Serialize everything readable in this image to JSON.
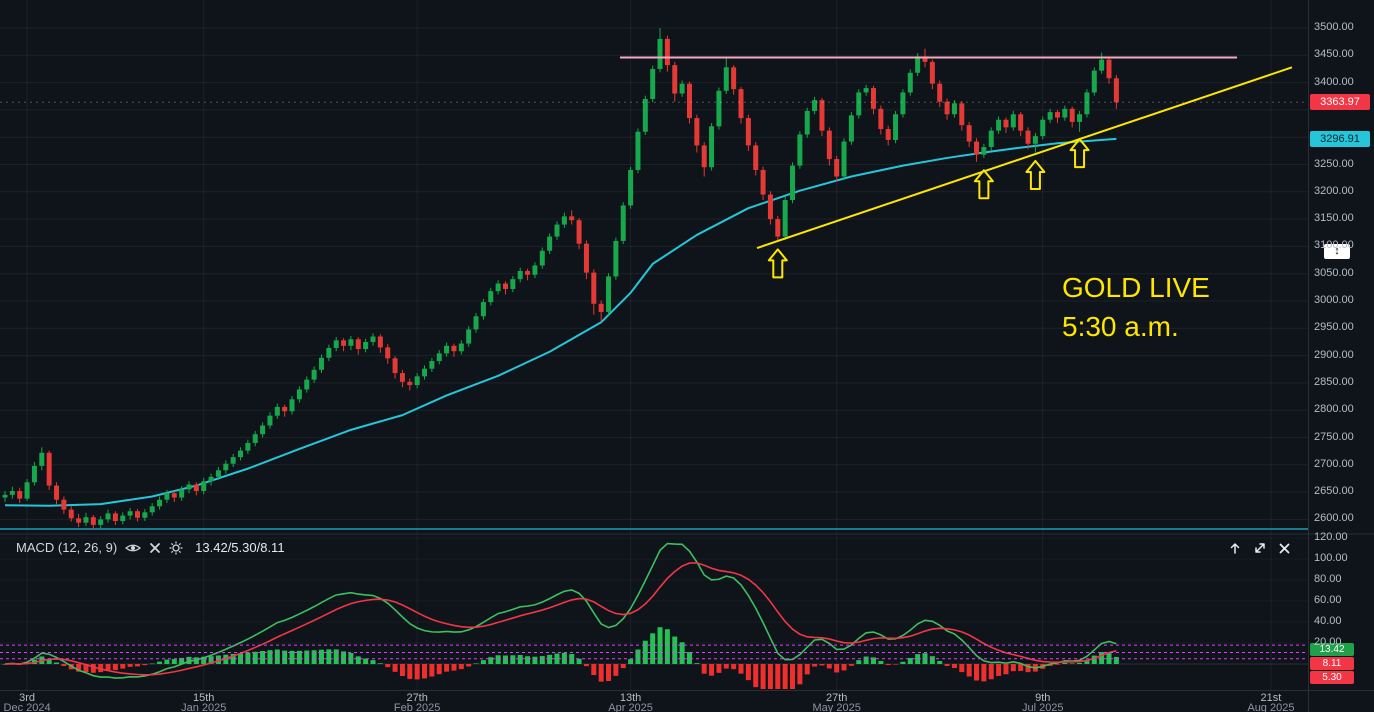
{
  "colors": {
    "bg": "#0e1419",
    "grid": "rgba(255,255,255,0.06)",
    "axis_text": "#b6bcc8",
    "separator": "#2a2e39",
    "up": "#17a74c",
    "down": "#e53935",
    "ma_line": "#26c6da",
    "trendline": "#ffe600",
    "resistance": "#f7a8c4",
    "macd_line": "#3dbf5f",
    "signal_line": "#f23645",
    "hist_up": "#21c454",
    "hist_down": "#ef2e2e",
    "levels_magenta": "#e040fb",
    "teal_hline": "#1b9db8",
    "last_badge_bg": "#f23645",
    "ma_badge_bg": "#26c6da",
    "annotation_yellow": "#ffe600"
  },
  "annotation": {
    "line1": "GOLD LIVE",
    "line2": "5:30 a.m."
  },
  "price_scale": {
    "last": "3363.97",
    "ma_value": "3296.91",
    "marker_glyph": "↕"
  },
  "macd_panel": {
    "title": "MACD (12, 26, 9)",
    "values": "13.42/5.30/8.11",
    "badge_macd": "13.42",
    "badge_signal": "8.11",
    "badge_hist": "5.30"
  },
  "chart_data": {
    "type": "candlestick",
    "title": "GOLD LIVE",
    "y_axis": {
      "min": 2600,
      "max": 3500,
      "step": 50
    },
    "macd_axis": {
      "ticks": [
        20,
        40,
        60,
        80,
        100,
        120
      ]
    },
    "x_ticks": [
      {
        "i": 3,
        "day": "3rd",
        "month": "Dec 2024"
      },
      {
        "i": 27,
        "day": "15th",
        "month": "Jan 2025"
      },
      {
        "i": 56,
        "day": "27th",
        "month": "Feb 2025"
      },
      {
        "i": 85,
        "day": "13th",
        "month": "Apr 2025"
      },
      {
        "i": 113,
        "day": "27th",
        "month": "May 2025"
      },
      {
        "i": 141,
        "day": "9th",
        "month": "Jul 2025"
      },
      {
        "i": 172,
        "day": "21st",
        "month": "Aug 2025"
      }
    ],
    "ohlc": [
      [
        2640,
        2652,
        2632,
        2645
      ],
      [
        2645,
        2660,
        2638,
        2652
      ],
      [
        2652,
        2658,
        2630,
        2638
      ],
      [
        2638,
        2674,
        2634,
        2668
      ],
      [
        2668,
        2705,
        2662,
        2698
      ],
      [
        2698,
        2732,
        2690,
        2722
      ],
      [
        2722,
        2726,
        2654,
        2662
      ],
      [
        2662,
        2668,
        2628,
        2636
      ],
      [
        2636,
        2642,
        2610,
        2618
      ],
      [
        2618,
        2624,
        2596,
        2602
      ],
      [
        2602,
        2610,
        2586,
        2594
      ],
      [
        2594,
        2612,
        2588,
        2604
      ],
      [
        2604,
        2608,
        2582,
        2590
      ],
      [
        2590,
        2606,
        2584,
        2600
      ],
      [
        2600,
        2618,
        2594,
        2611
      ],
      [
        2611,
        2615,
        2590,
        2597
      ],
      [
        2597,
        2613,
        2591,
        2607
      ],
      [
        2607,
        2621,
        2600,
        2615
      ],
      [
        2615,
        2619,
        2596,
        2603
      ],
      [
        2603,
        2619,
        2597,
        2613
      ],
      [
        2613,
        2630,
        2607,
        2624
      ],
      [
        2624,
        2642,
        2618,
        2636
      ],
      [
        2636,
        2654,
        2630,
        2648
      ],
      [
        2648,
        2652,
        2632,
        2640
      ],
      [
        2640,
        2661,
        2634,
        2655
      ],
      [
        2655,
        2670,
        2648,
        2664
      ],
      [
        2664,
        2668,
        2644,
        2652
      ],
      [
        2652,
        2676,
        2646,
        2670
      ],
      [
        2670,
        2684,
        2662,
        2678
      ],
      [
        2678,
        2696,
        2672,
        2690
      ],
      [
        2690,
        2708,
        2684,
        2702
      ],
      [
        2702,
        2720,
        2696,
        2714
      ],
      [
        2714,
        2732,
        2708,
        2726
      ],
      [
        2726,
        2746,
        2720,
        2740
      ],
      [
        2740,
        2762,
        2734,
        2756
      ],
      [
        2756,
        2778,
        2750,
        2772
      ],
      [
        2772,
        2796,
        2766,
        2790
      ],
      [
        2790,
        2812,
        2784,
        2806
      ],
      [
        2806,
        2810,
        2788,
        2798
      ],
      [
        2798,
        2826,
        2792,
        2820
      ],
      [
        2820,
        2844,
        2814,
        2838
      ],
      [
        2838,
        2862,
        2832,
        2856
      ],
      [
        2856,
        2880,
        2850,
        2874
      ],
      [
        2874,
        2902,
        2868,
        2896
      ],
      [
        2896,
        2920,
        2890,
        2914
      ],
      [
        2914,
        2934,
        2908,
        2928
      ],
      [
        2928,
        2932,
        2908,
        2918
      ],
      [
        2918,
        2936,
        2910,
        2930
      ],
      [
        2930,
        2934,
        2902,
        2912
      ],
      [
        2912,
        2931,
        2906,
        2925
      ],
      [
        2925,
        2941,
        2918,
        2935
      ],
      [
        2935,
        2939,
        2905,
        2915
      ],
      [
        2915,
        2921,
        2885,
        2895
      ],
      [
        2895,
        2899,
        2858,
        2868
      ],
      [
        2868,
        2874,
        2842,
        2852
      ],
      [
        2852,
        2858,
        2836,
        2846
      ],
      [
        2846,
        2868,
        2840,
        2862
      ],
      [
        2862,
        2882,
        2856,
        2876
      ],
      [
        2876,
        2896,
        2870,
        2890
      ],
      [
        2890,
        2910,
        2884,
        2904
      ],
      [
        2904,
        2924,
        2898,
        2918
      ],
      [
        2918,
        2922,
        2898,
        2908
      ],
      [
        2908,
        2928,
        2902,
        2922
      ],
      [
        2922,
        2954,
        2916,
        2948
      ],
      [
        2948,
        2978,
        2942,
        2972
      ],
      [
        2972,
        3004,
        2966,
        2998
      ],
      [
        2998,
        3024,
        2992,
        3018
      ],
      [
        3018,
        3038,
        3012,
        3032
      ],
      [
        3032,
        3036,
        3012,
        3022
      ],
      [
        3022,
        3046,
        3016,
        3040
      ],
      [
        3040,
        3061,
        3034,
        3055
      ],
      [
        3055,
        3059,
        3038,
        3048
      ],
      [
        3048,
        3071,
        3042,
        3065
      ],
      [
        3065,
        3098,
        3059,
        3092
      ],
      [
        3092,
        3124,
        3086,
        3118
      ],
      [
        3118,
        3146,
        3112,
        3140
      ],
      [
        3140,
        3162,
        3134,
        3155
      ],
      [
        3155,
        3166,
        3140,
        3148
      ],
      [
        3148,
        3152,
        3095,
        3105
      ],
      [
        3105,
        3111,
        3040,
        3052
      ],
      [
        3052,
        3058,
        2975,
        2995
      ],
      [
        2995,
        3001,
        2962,
        2980
      ],
      [
        2980,
        3051,
        2974,
        3045
      ],
      [
        3045,
        3116,
        3039,
        3110
      ],
      [
        3110,
        3181,
        3104,
        3175
      ],
      [
        3175,
        3246,
        3169,
        3240
      ],
      [
        3240,
        3316,
        3234,
        3310
      ],
      [
        3310,
        3376,
        3304,
        3370
      ],
      [
        3370,
        3431,
        3364,
        3425
      ],
      [
        3425,
        3500,
        3419,
        3480
      ],
      [
        3480,
        3486,
        3420,
        3432
      ],
      [
        3432,
        3438,
        3365,
        3380
      ],
      [
        3380,
        3404,
        3374,
        3398
      ],
      [
        3398,
        3402,
        3325,
        3335
      ],
      [
        3335,
        3341,
        3272,
        3285
      ],
      [
        3285,
        3291,
        3228,
        3245
      ],
      [
        3245,
        3326,
        3239,
        3320
      ],
      [
        3320,
        3391,
        3314,
        3385
      ],
      [
        3385,
        3445,
        3379,
        3428
      ],
      [
        3428,
        3432,
        3378,
        3388
      ],
      [
        3388,
        3392,
        3325,
        3335
      ],
      [
        3335,
        3341,
        3275,
        3285
      ],
      [
        3285,
        3291,
        3230,
        3240
      ],
      [
        3240,
        3246,
        3185,
        3195
      ],
      [
        3195,
        3201,
        3140,
        3150
      ],
      [
        3150,
        3156,
        3108,
        3118
      ],
      [
        3118,
        3191,
        3112,
        3185
      ],
      [
        3185,
        3254,
        3179,
        3248
      ],
      [
        3248,
        3311,
        3242,
        3305
      ],
      [
        3305,
        3354,
        3299,
        3348
      ],
      [
        3348,
        3374,
        3342,
        3368
      ],
      [
        3368,
        3372,
        3302,
        3312
      ],
      [
        3312,
        3318,
        3248,
        3260
      ],
      [
        3260,
        3266,
        3218,
        3228
      ],
      [
        3228,
        3298,
        3222,
        3292
      ],
      [
        3292,
        3346,
        3286,
        3340
      ],
      [
        3340,
        3388,
        3334,
        3382
      ],
      [
        3382,
        3396,
        3376,
        3390
      ],
      [
        3390,
        3394,
        3342,
        3352
      ],
      [
        3352,
        3358,
        3305,
        3315
      ],
      [
        3315,
        3321,
        3285,
        3295
      ],
      [
        3295,
        3348,
        3289,
        3342
      ],
      [
        3342,
        3388,
        3336,
        3382
      ],
      [
        3382,
        3424,
        3376,
        3418
      ],
      [
        3418,
        3454,
        3412,
        3448
      ],
      [
        3448,
        3462,
        3428,
        3438
      ],
      [
        3438,
        3442,
        3388,
        3398
      ],
      [
        3398,
        3404,
        3355,
        3365
      ],
      [
        3365,
        3371,
        3332,
        3342
      ],
      [
        3342,
        3368,
        3336,
        3362
      ],
      [
        3362,
        3366,
        3312,
        3322
      ],
      [
        3322,
        3328,
        3282,
        3292
      ],
      [
        3292,
        3298,
        3255,
        3268
      ],
      [
        3268,
        3288,
        3262,
        3282
      ],
      [
        3282,
        3318,
        3276,
        3312
      ],
      [
        3312,
        3338,
        3306,
        3332
      ],
      [
        3332,
        3336,
        3308,
        3318
      ],
      [
        3318,
        3348,
        3312,
        3342
      ],
      [
        3342,
        3346,
        3302,
        3312
      ],
      [
        3312,
        3318,
        3278,
        3288
      ],
      [
        3288,
        3308,
        3272,
        3302
      ],
      [
        3302,
        3338,
        3296,
        3332
      ],
      [
        3332,
        3352,
        3326,
        3346
      ],
      [
        3346,
        3350,
        3326,
        3336
      ],
      [
        3336,
        3358,
        3330,
        3352
      ],
      [
        3352,
        3356,
        3318,
        3328
      ],
      [
        3328,
        3348,
        3310,
        3342
      ],
      [
        3342,
        3388,
        3336,
        3382
      ],
      [
        3382,
        3428,
        3376,
        3422
      ],
      [
        3422,
        3455,
        3416,
        3442
      ],
      [
        3442,
        3448,
        3398,
        3408
      ],
      [
        3408,
        3414,
        3352,
        3363.97
      ]
    ],
    "ma_points": [
      [
        0,
        2626
      ],
      [
        6,
        2625
      ],
      [
        13,
        2628
      ],
      [
        20,
        2642
      ],
      [
        26,
        2662
      ],
      [
        33,
        2693
      ],
      [
        40,
        2729
      ],
      [
        47,
        2764
      ],
      [
        54,
        2791
      ],
      [
        60,
        2827
      ],
      [
        67,
        2863
      ],
      [
        74,
        2907
      ],
      [
        81,
        2961
      ],
      [
        85,
        3015
      ],
      [
        88,
        3068
      ],
      [
        94,
        3121
      ],
      [
        101,
        3170
      ],
      [
        108,
        3202
      ],
      [
        115,
        3228
      ],
      [
        122,
        3248
      ],
      [
        128,
        3262
      ],
      [
        133,
        3272
      ],
      [
        138,
        3281
      ],
      [
        143,
        3289
      ],
      [
        148,
        3294
      ],
      [
        151,
        3297
      ]
    ],
    "trendline": {
      "x1": 757,
      "price1": 3097,
      "x2": 1292,
      "price2": 3428
    },
    "resistance_line": {
      "price": 3446,
      "x1": 620,
      "x2": 1237
    },
    "teal_hline_y": 529,
    "last_price": 3363.97,
    "arrows": [
      {
        "i": 105,
        "price": 3100
      },
      {
        "i": 133,
        "price": 3245
      },
      {
        "i": 140,
        "price": 3262
      },
      {
        "i": 146,
        "price": 3302
      }
    ],
    "macd": {
      "fast": 12,
      "slow": 26,
      "smoothing": 9,
      "levels": [
        18,
        11,
        5
      ],
      "last_macd": 13.42,
      "last_signal": 8.11,
      "last_hist": 5.3
    }
  }
}
